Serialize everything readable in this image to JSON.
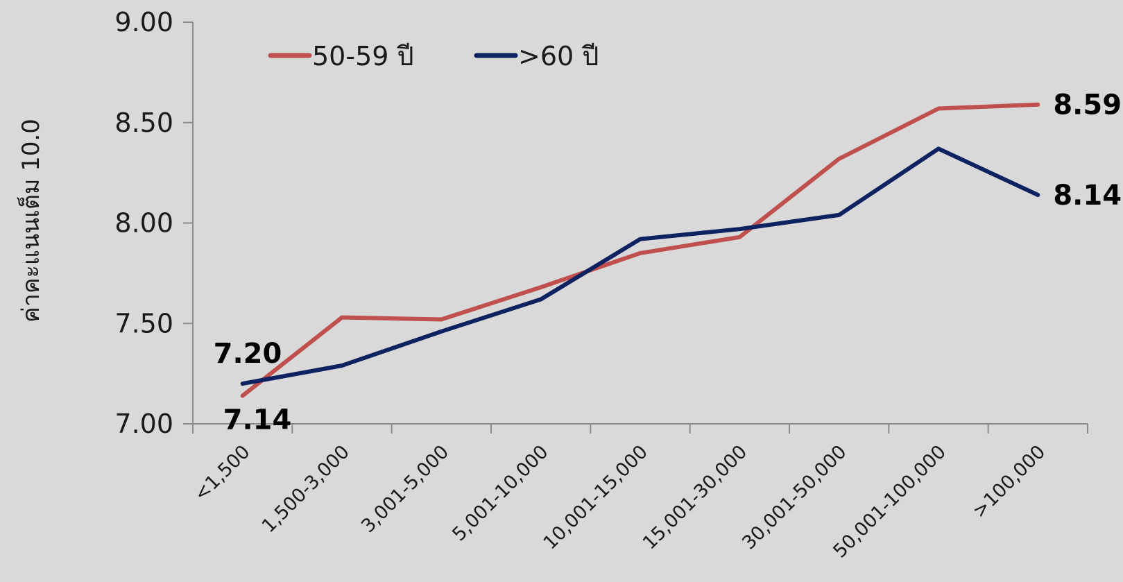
{
  "chart_data": {
    "type": "line",
    "categories": [
      "<1,500",
      "1,500-3,000",
      "3,001-5,000",
      "5,001-10,000",
      "10,001-15,000",
      "15,001-30,000",
      "30,001-50,000",
      "50,001-100,000",
      ">100,000"
    ],
    "series": [
      {
        "name": "50-59 ปี",
        "color": "#c0504d",
        "values": [
          7.14,
          7.53,
          7.52,
          7.68,
          7.85,
          7.93,
          8.32,
          8.57,
          8.59
        ]
      },
      {
        "name": ">60 ปี",
        "color": "#0d2260",
        "values": [
          7.2,
          7.29,
          7.46,
          7.62,
          7.92,
          7.97,
          8.04,
          8.37,
          8.14
        ]
      }
    ],
    "yticks": [
      "7.00",
      "7.50",
      "8.00",
      "8.50",
      "9.00"
    ],
    "ylim": [
      7.0,
      9.0
    ],
    "ylabel": "ค่าคะแนนเต็ม 10.0",
    "xlabel": "",
    "title": "",
    "legend_position": "top-left",
    "grid": false,
    "data_labels": [
      {
        "series": 1,
        "index": 0,
        "text": "7.20",
        "side": "above"
      },
      {
        "series": 0,
        "index": 0,
        "text": "7.14",
        "side": "below"
      },
      {
        "series": 0,
        "index": 8,
        "text": "8.59",
        "side": "right"
      },
      {
        "series": 1,
        "index": 8,
        "text": "8.14",
        "side": "right"
      }
    ]
  }
}
